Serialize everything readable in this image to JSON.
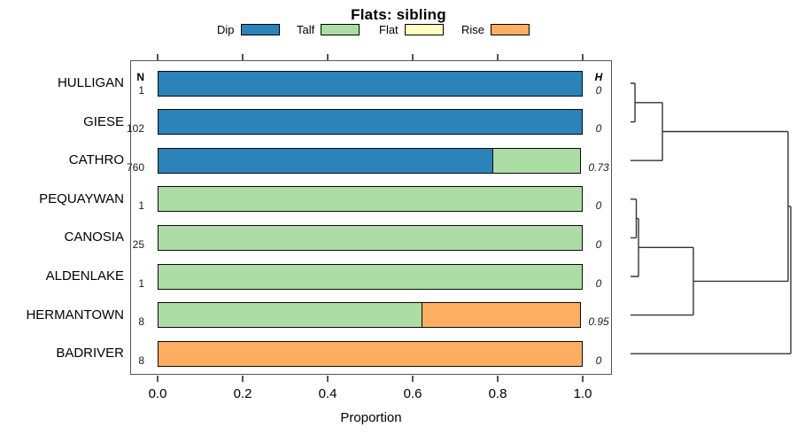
{
  "title": "Flats: sibling",
  "columns": {
    "n": "N",
    "h": "H"
  },
  "x_axis": {
    "label": "Proportion",
    "ticks": [
      "0.0",
      "0.2",
      "0.4",
      "0.6",
      "0.8",
      "1.0"
    ],
    "range": [
      0,
      1
    ]
  },
  "legend": [
    {
      "label": "Dip",
      "color": "#2B83BA"
    },
    {
      "label": "Talf",
      "color": "#ABDDA4"
    },
    {
      "label": "Flat",
      "color": "#FFFFBF"
    },
    {
      "label": "Rise",
      "color": "#FDAE61"
    }
  ],
  "chart_data": {
    "type": "bar",
    "orientation": "horizontal",
    "stacked": true,
    "title": "Flats: sibling",
    "xlabel": "Proportion",
    "xlim": [
      0,
      1
    ],
    "grid": false,
    "legend_position": "top",
    "categories": [
      "HULLIGAN",
      "GIESE",
      "CATHRO",
      "PEQUAYWAN",
      "CANOSIA",
      "ALDENLAKE",
      "HERMANTOWN",
      "BADRIVER"
    ],
    "N": [
      "1",
      "102",
      "760",
      "1",
      "25",
      "1",
      "8",
      "8"
    ],
    "H": [
      "0",
      "0",
      "0.73",
      "0",
      "0",
      "0",
      "0.95",
      "0"
    ],
    "series": [
      {
        "name": "Dip",
        "values": [
          1,
          1,
          0.79,
          0,
          0,
          0,
          0,
          0
        ]
      },
      {
        "name": "Talf",
        "values": [
          0,
          0,
          0.21,
          1,
          1,
          1,
          0.625,
          0
        ]
      },
      {
        "name": "Flat",
        "values": [
          0,
          0,
          0,
          0,
          0,
          0,
          0,
          0
        ]
      },
      {
        "name": "Rise",
        "values": [
          0,
          0,
          0,
          0,
          0,
          0,
          0.375,
          1
        ]
      }
    ]
  },
  "dendrogram": {
    "orientation": "right-of-bars, heights increase rightward",
    "height_scale": "relative 0-1",
    "tree": {
      "h": 1.0,
      "children": [
        {
          "h": 0.983,
          "children": [
            {
              "h": 0.199,
              "children": [
                {
                  "h": 0.028,
                  "children": [
                    {
                      "leaf": "HULLIGAN"
                    },
                    {
                      "leaf": "GIESE"
                    }
                  ]
                },
                {
                  "leaf": "CATHRO"
                }
              ]
            },
            {
              "h": 0.392,
              "children": [
                {
                  "h": 0.05,
                  "children": [
                    {
                      "h": 0.036,
                      "children": [
                        {
                          "leaf": "PEQUAYWAN"
                        },
                        {
                          "leaf": "CANOSIA"
                        }
                      ]
                    },
                    {
                      "leaf": "ALDENLAKE"
                    }
                  ]
                },
                {
                  "leaf": "HERMANTOWN"
                }
              ]
            }
          ]
        },
        {
          "leaf": "BADRIVER"
        }
      ]
    }
  }
}
